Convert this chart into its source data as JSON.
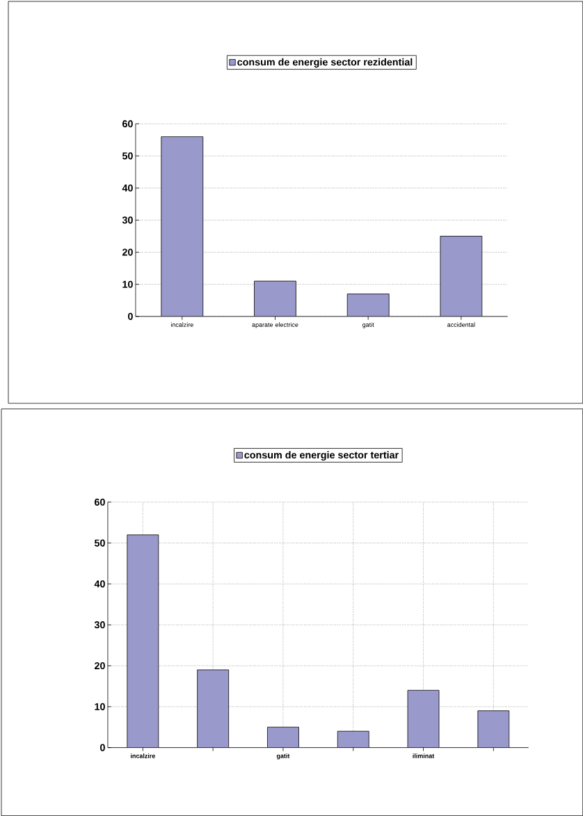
{
  "chart_data": [
    {
      "type": "bar",
      "categories": [
        "incalzire",
        "aparate electrice",
        "gatit",
        "accidental"
      ],
      "series": [
        {
          "name": "consum de energie sector rezidential",
          "color": "#9999cc",
          "values": [
            56,
            11,
            7,
            25
          ]
        }
      ],
      "ylim": [
        0,
        60
      ],
      "yticks": [
        0,
        10,
        20,
        30,
        40,
        50,
        60
      ],
      "grid": "y",
      "legend": "top"
    },
    {
      "type": "bar",
      "categories": [
        "incalzire",
        null,
        "gatit",
        null,
        "iliminat",
        null
      ],
      "series": [
        {
          "name": "consum de energie sector tertiar",
          "color": "#9999cc",
          "values": [
            52,
            19,
            5,
            4,
            14,
            9
          ]
        }
      ],
      "ylim": [
        0,
        60
      ],
      "yticks": [
        0,
        10,
        20,
        30,
        40,
        50,
        60
      ],
      "grid": true,
      "legend": "top"
    }
  ]
}
